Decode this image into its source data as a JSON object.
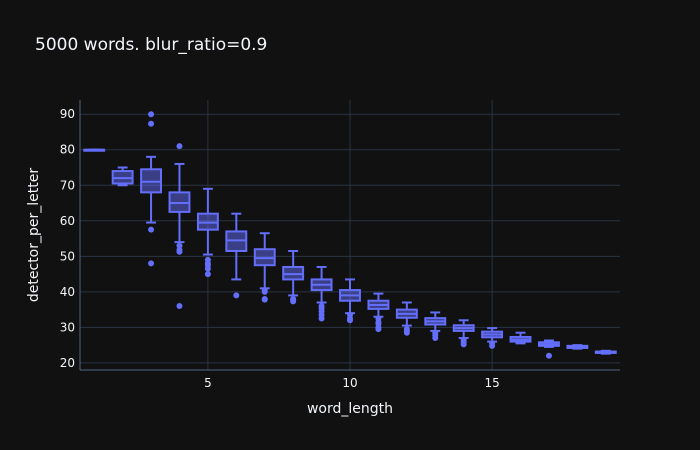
{
  "chart_data": {
    "type": "box",
    "title": "5000 words. blur_ratio=0.9",
    "xlabel": "word_length",
    "ylabel": "detector_per_letter",
    "xlim": [
      0.5,
      19.5
    ],
    "ylim": [
      18,
      94
    ],
    "x_ticks": [
      5,
      10,
      15
    ],
    "y_ticks": [
      20,
      30,
      40,
      50,
      60,
      70,
      80,
      90
    ],
    "grid": true,
    "colors": {
      "background": "#111111",
      "grid": "#283442",
      "box": "#636efa",
      "text": "#f2f5fa"
    },
    "boxes": [
      {
        "x": 1,
        "min": 80,
        "q1": 80,
        "median": 80,
        "q3": 80,
        "max": 80,
        "outliers": []
      },
      {
        "x": 2,
        "min": 70,
        "q1": 70.5,
        "median": 72,
        "q3": 74,
        "max": 75,
        "outliers": []
      },
      {
        "x": 3,
        "min": 59.5,
        "q1": 68,
        "median": 71,
        "q3": 74.5,
        "max": 78,
        "outliers": [
          90,
          87.3,
          57.5,
          48
        ]
      },
      {
        "x": 4,
        "min": 54,
        "q1": 62.5,
        "median": 65,
        "q3": 68,
        "max": 76,
        "outliers": [
          81,
          53,
          51.8,
          51.3,
          36
        ]
      },
      {
        "x": 5,
        "min": 50.5,
        "q1": 57.5,
        "median": 59.5,
        "q3": 62,
        "max": 69,
        "outliers": [
          49,
          48,
          47.5,
          46.5,
          45
        ]
      },
      {
        "x": 6,
        "min": 43.5,
        "q1": 51.5,
        "median": 54.5,
        "q3": 57,
        "max": 62,
        "outliers": [
          39
        ]
      },
      {
        "x": 7,
        "min": 41,
        "q1": 47.5,
        "median": 49.5,
        "q3": 52,
        "max": 56.5,
        "outliers": [
          40.5,
          40,
          38,
          37.8
        ]
      },
      {
        "x": 8,
        "min": 39,
        "q1": 43.5,
        "median": 45,
        "q3": 47,
        "max": 51.5,
        "outliers": [
          38,
          37.6,
          37.3
        ]
      },
      {
        "x": 9,
        "min": 37,
        "q1": 40.5,
        "median": 42,
        "q3": 43.5,
        "max": 47,
        "outliers": [
          36,
          35.3,
          34.5,
          33.5,
          32.5
        ]
      },
      {
        "x": 10,
        "min": 34,
        "q1": 37.5,
        "median": 39,
        "q3": 40.5,
        "max": 43.5,
        "outliers": [
          33.5,
          32.5,
          32
        ]
      },
      {
        "x": 11,
        "min": 33,
        "q1": 35.2,
        "median": 36.3,
        "q3": 37.5,
        "max": 39.5,
        "outliers": [
          32.5,
          31.5,
          31,
          30,
          29.5
        ]
      },
      {
        "x": 12,
        "min": 30.5,
        "q1": 32.7,
        "median": 33.8,
        "q3": 35,
        "max": 37,
        "outliers": [
          29.5,
          29,
          28.5
        ]
      },
      {
        "x": 13,
        "min": 29,
        "q1": 30.8,
        "median": 31.7,
        "q3": 32.6,
        "max": 34.2,
        "outliers": [
          28.5,
          27.8,
          27
        ]
      },
      {
        "x": 14,
        "min": 27,
        "q1": 29,
        "median": 29.8,
        "q3": 30.6,
        "max": 32,
        "outliers": [
          26.5,
          25.8,
          25.2
        ]
      },
      {
        "x": 15,
        "min": 26,
        "q1": 27.2,
        "median": 28,
        "q3": 28.8,
        "max": 29.8,
        "outliers": [
          25.5,
          24.8
        ]
      },
      {
        "x": 16,
        "min": 25.5,
        "q1": 26,
        "median": 26.6,
        "q3": 27.3,
        "max": 28.5,
        "outliers": []
      },
      {
        "x": 17,
        "min": 24.5,
        "q1": 24.8,
        "median": 25.3,
        "q3": 25.8,
        "max": 26.3,
        "outliers": [
          22
        ]
      },
      {
        "x": 18,
        "min": 24,
        "q1": 24.2,
        "median": 24.5,
        "q3": 24.8,
        "max": 25,
        "outliers": []
      },
      {
        "x": 19,
        "min": 22.6,
        "q1": 22.8,
        "median": 23,
        "q3": 23.2,
        "max": 23.4,
        "outliers": []
      }
    ]
  }
}
